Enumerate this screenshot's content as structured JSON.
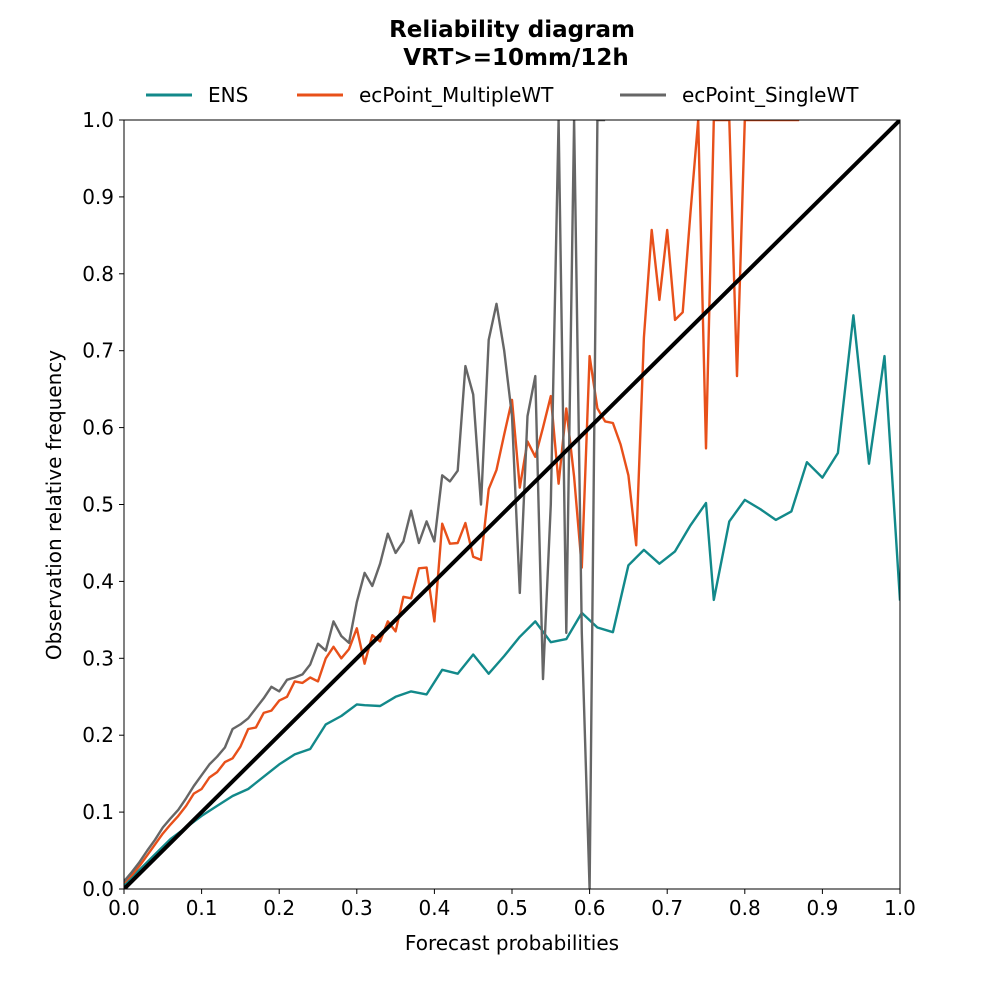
{
  "chart_data": {
    "type": "line",
    "title": "Reliability diagram",
    "subtitle": "VRT>=10mm/12h",
    "xlabel": "Forecast probabilities",
    "ylabel": "Observation relative frequency",
    "xlim": [
      0.0,
      1.0
    ],
    "ylim": [
      0.0,
      1.0
    ],
    "xticks": [
      "0.0",
      "0.1",
      "0.2",
      "0.3",
      "0.4",
      "0.5",
      "0.6",
      "0.7",
      "0.8",
      "0.9",
      "1.0"
    ],
    "yticks": [
      "0.0",
      "0.1",
      "0.2",
      "0.3",
      "0.4",
      "0.5",
      "0.6",
      "0.7",
      "0.8",
      "0.9",
      "1.0"
    ],
    "grid": false,
    "legend_position": "top-center",
    "diagonal": {
      "x": [
        0.0,
        1.0
      ],
      "y": [
        0.0,
        1.0
      ],
      "color": "#000000"
    },
    "series": [
      {
        "name": "ENS",
        "color": "#12898a",
        "x": [
          0.0,
          0.02,
          0.04,
          0.06,
          0.08,
          0.1,
          0.12,
          0.14,
          0.16,
          0.18,
          0.2,
          0.22,
          0.24,
          0.26,
          0.28,
          0.3,
          0.31,
          0.33,
          0.35,
          0.37,
          0.39,
          0.41,
          0.43,
          0.45,
          0.47,
          0.49,
          0.51,
          0.53,
          0.55,
          0.57,
          0.59,
          0.61,
          0.63,
          0.65,
          0.67,
          0.69,
          0.71,
          0.73,
          0.75,
          0.76,
          0.78,
          0.8,
          0.82,
          0.84,
          0.86,
          0.88,
          0.9,
          0.92,
          0.94,
          0.96,
          0.98,
          1.0
        ],
        "y": [
          0.005,
          0.025,
          0.045,
          0.065,
          0.08,
          0.095,
          0.108,
          0.121,
          0.13,
          0.146,
          0.162,
          0.175,
          0.182,
          0.214,
          0.225,
          0.24,
          0.239,
          0.238,
          0.25,
          0.257,
          0.253,
          0.285,
          0.28,
          0.305,
          0.28,
          0.303,
          0.328,
          0.348,
          0.321,
          0.325,
          0.359,
          0.34,
          0.334,
          0.421,
          0.441,
          0.423,
          0.439,
          0.473,
          0.502,
          0.376,
          0.478,
          0.506,
          0.494,
          0.48,
          0.491,
          0.555,
          0.535,
          0.567,
          0.746,
          0.553,
          0.693,
          0.375
        ]
      },
      {
        "name": "ecPoint_MultipleWT",
        "color": "#e8501a",
        "x": [
          0.0,
          0.01,
          0.02,
          0.03,
          0.04,
          0.05,
          0.06,
          0.07,
          0.08,
          0.09,
          0.1,
          0.11,
          0.12,
          0.13,
          0.14,
          0.15,
          0.16,
          0.17,
          0.18,
          0.19,
          0.2,
          0.21,
          0.22,
          0.23,
          0.24,
          0.25,
          0.26,
          0.27,
          0.28,
          0.29,
          0.3,
          0.31,
          0.32,
          0.33,
          0.34,
          0.35,
          0.36,
          0.37,
          0.38,
          0.39,
          0.4,
          0.41,
          0.42,
          0.43,
          0.44,
          0.45,
          0.46,
          0.47,
          0.48,
          0.49,
          0.5,
          0.51,
          0.52,
          0.53,
          0.54,
          0.55,
          0.56,
          0.57,
          0.58,
          0.59,
          0.6,
          0.61,
          0.62,
          0.63,
          0.64,
          0.65,
          0.66,
          0.67,
          0.68,
          0.69,
          0.7,
          0.71,
          0.72,
          0.73,
          0.74,
          0.75,
          0.76,
          0.77,
          0.78,
          0.79,
          0.8,
          0.81,
          0.82,
          0.83,
          0.84,
          0.85,
          0.86,
          0.87
        ],
        "y": [
          0.008,
          0.018,
          0.03,
          0.044,
          0.058,
          0.072,
          0.084,
          0.095,
          0.108,
          0.124,
          0.13,
          0.145,
          0.152,
          0.165,
          0.17,
          0.185,
          0.208,
          0.21,
          0.229,
          0.232,
          0.245,
          0.25,
          0.27,
          0.268,
          0.275,
          0.27,
          0.3,
          0.315,
          0.3,
          0.312,
          0.339,
          0.293,
          0.33,
          0.322,
          0.348,
          0.335,
          0.38,
          0.378,
          0.417,
          0.418,
          0.348,
          0.475,
          0.449,
          0.45,
          0.476,
          0.432,
          0.428,
          0.52,
          0.545,
          0.591,
          0.636,
          0.522,
          0.582,
          0.562,
          0.6,
          0.641,
          0.527,
          0.625,
          0.536,
          0.418,
          0.693,
          0.625,
          0.608,
          0.606,
          0.578,
          0.538,
          0.447,
          0.717,
          0.857,
          0.766,
          0.857,
          0.74,
          0.75,
          0.88,
          1.0,
          0.573,
          1.0,
          1.0,
          1.0,
          0.667,
          1.0,
          1.0,
          1.0,
          1.0,
          1.0,
          1.0,
          1.0,
          1.0
        ]
      },
      {
        "name": "ecPoint_SingleWT",
        "color": "#666666",
        "x": [
          0.0,
          0.01,
          0.02,
          0.03,
          0.04,
          0.05,
          0.06,
          0.07,
          0.08,
          0.09,
          0.1,
          0.11,
          0.12,
          0.13,
          0.14,
          0.15,
          0.16,
          0.17,
          0.18,
          0.19,
          0.2,
          0.21,
          0.22,
          0.23,
          0.24,
          0.25,
          0.26,
          0.27,
          0.28,
          0.29,
          0.3,
          0.31,
          0.32,
          0.33,
          0.34,
          0.35,
          0.36,
          0.37,
          0.38,
          0.39,
          0.4,
          0.41,
          0.42,
          0.43,
          0.44,
          0.45,
          0.46,
          0.47,
          0.48,
          0.49,
          0.5,
          0.51,
          0.52,
          0.53,
          0.54,
          0.55,
          0.56,
          0.57,
          0.58,
          0.59,
          0.6,
          0.61,
          0.62
        ],
        "y": [
          0.01,
          0.022,
          0.035,
          0.05,
          0.064,
          0.08,
          0.092,
          0.103,
          0.118,
          0.134,
          0.148,
          0.162,
          0.172,
          0.184,
          0.208,
          0.214,
          0.222,
          0.235,
          0.248,
          0.263,
          0.257,
          0.272,
          0.275,
          0.279,
          0.292,
          0.319,
          0.31,
          0.348,
          0.329,
          0.32,
          0.373,
          0.411,
          0.394,
          0.423,
          0.462,
          0.437,
          0.452,
          0.492,
          0.45,
          0.478,
          0.452,
          0.538,
          0.53,
          0.544,
          0.68,
          0.643,
          0.5,
          0.714,
          0.761,
          0.7,
          0.615,
          0.385,
          0.615,
          0.667,
          0.273,
          0.5,
          1.0,
          0.333,
          1.0,
          0.333,
          0.0,
          1.0,
          1.0
        ]
      }
    ]
  }
}
